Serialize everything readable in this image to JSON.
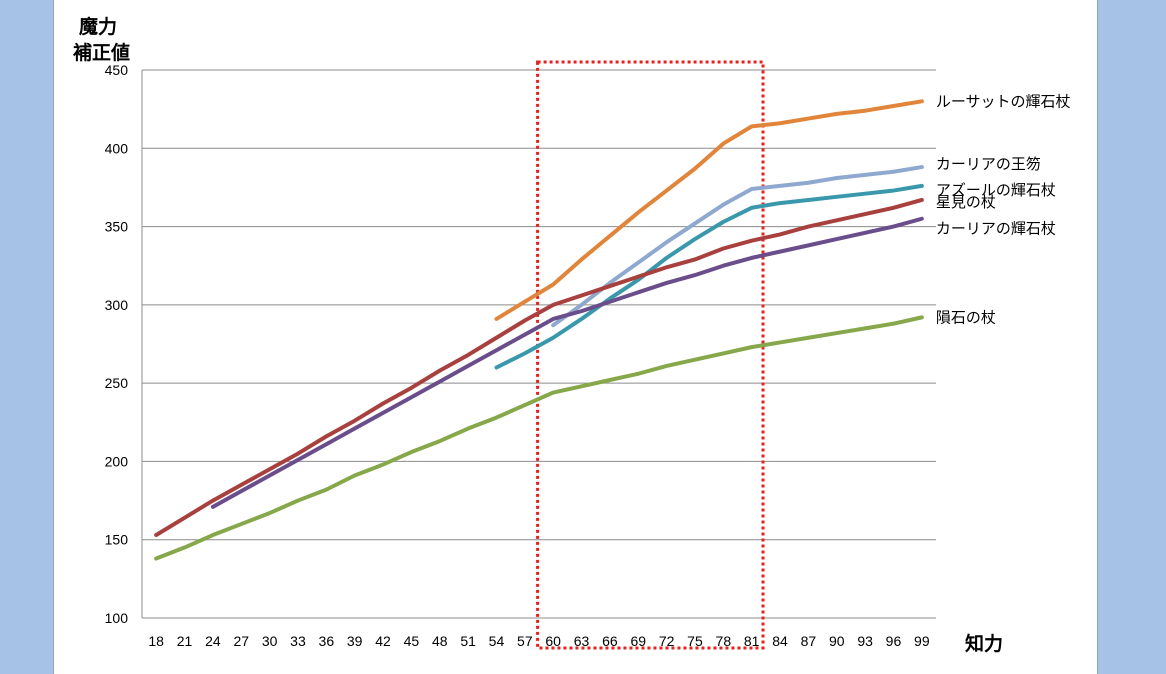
{
  "chart_data": {
    "type": "line",
    "ylabel_lines": [
      "魔力",
      "補正値"
    ],
    "xlabel": "知力",
    "ylim": [
      100,
      450
    ],
    "yticks": [
      100,
      150,
      200,
      250,
      300,
      350,
      400,
      450
    ],
    "grid": "horizontal",
    "legend_placement": "right, labels at line ends",
    "categories": [
      18,
      21,
      24,
      27,
      30,
      33,
      36,
      39,
      42,
      45,
      48,
      51,
      54,
      57,
      60,
      63,
      66,
      69,
      72,
      75,
      78,
      81,
      84,
      87,
      90,
      93,
      96,
      99
    ],
    "highlight_range": {
      "from": 60,
      "to": 81,
      "style": "red dotted box"
    },
    "series": [
      {
        "name": "ルーサットの輝石杖",
        "color": "#e0853a",
        "x": [
          54,
          57,
          60,
          63,
          66,
          69,
          72,
          75,
          78,
          81,
          84,
          87,
          90,
          93,
          96,
          99
        ],
        "y": [
          291,
          302,
          313,
          329,
          344,
          359,
          373,
          387,
          403,
          414,
          416,
          419,
          422,
          424,
          427,
          430
        ]
      },
      {
        "name": "カーリアの王笏",
        "color": "#8ea8d0",
        "x": [
          60,
          63,
          66,
          69,
          72,
          75,
          78,
          81,
          84,
          87,
          90,
          93,
          96,
          99
        ],
        "y": [
          287,
          300,
          314,
          327,
          340,
          352,
          364,
          374,
          376,
          378,
          381,
          383,
          385,
          388
        ]
      },
      {
        "name": "アズールの輝石杖",
        "color": "#3a98ac",
        "x": [
          54,
          57,
          60,
          63,
          66,
          69,
          72,
          75,
          78,
          81,
          84,
          87,
          90,
          93,
          96,
          99
        ],
        "y": [
          260,
          269,
          279,
          291,
          304,
          316,
          330,
          342,
          353,
          362,
          365,
          367,
          369,
          371,
          373,
          376
        ]
      },
      {
        "name": "星見の杖",
        "color": "#a8403e",
        "x": [
          18,
          21,
          24,
          27,
          30,
          33,
          36,
          39,
          42,
          45,
          48,
          51,
          54,
          57,
          60,
          63,
          66,
          69,
          72,
          75,
          78,
          81,
          84,
          87,
          90,
          93,
          96,
          99
        ],
        "y": [
          153,
          164,
          175,
          185,
          195,
          205,
          216,
          226,
          237,
          247,
          258,
          268,
          279,
          290,
          300,
          306,
          312,
          318,
          324,
          329,
          336,
          341,
          345,
          350,
          354,
          358,
          362,
          367
        ]
      },
      {
        "name": "カーリアの輝石杖",
        "color": "#6a4e8c",
        "x": [
          24,
          27,
          30,
          33,
          36,
          39,
          42,
          45,
          48,
          51,
          54,
          57,
          60,
          63,
          66,
          69,
          72,
          75,
          78,
          81,
          84,
          87,
          90,
          93,
          96,
          99
        ],
        "y": [
          171,
          181,
          191,
          201,
          211,
          221,
          231,
          241,
          251,
          261,
          271,
          281,
          291,
          296,
          302,
          308,
          314,
          319,
          325,
          330,
          334,
          338,
          342,
          346,
          350,
          355
        ]
      },
      {
        "name": "隕石の杖",
        "color": "#86a84a",
        "x": [
          18,
          21,
          24,
          27,
          30,
          33,
          36,
          39,
          42,
          45,
          48,
          51,
          54,
          57,
          60,
          63,
          66,
          69,
          72,
          75,
          78,
          81,
          84,
          87,
          90,
          93,
          96,
          99
        ],
        "y": [
          138,
          145,
          153,
          160,
          167,
          175,
          182,
          191,
          198,
          206,
          213,
          221,
          228,
          236,
          244,
          248,
          252,
          256,
          261,
          265,
          269,
          273,
          276,
          279,
          282,
          285,
          288,
          292
        ]
      }
    ]
  }
}
